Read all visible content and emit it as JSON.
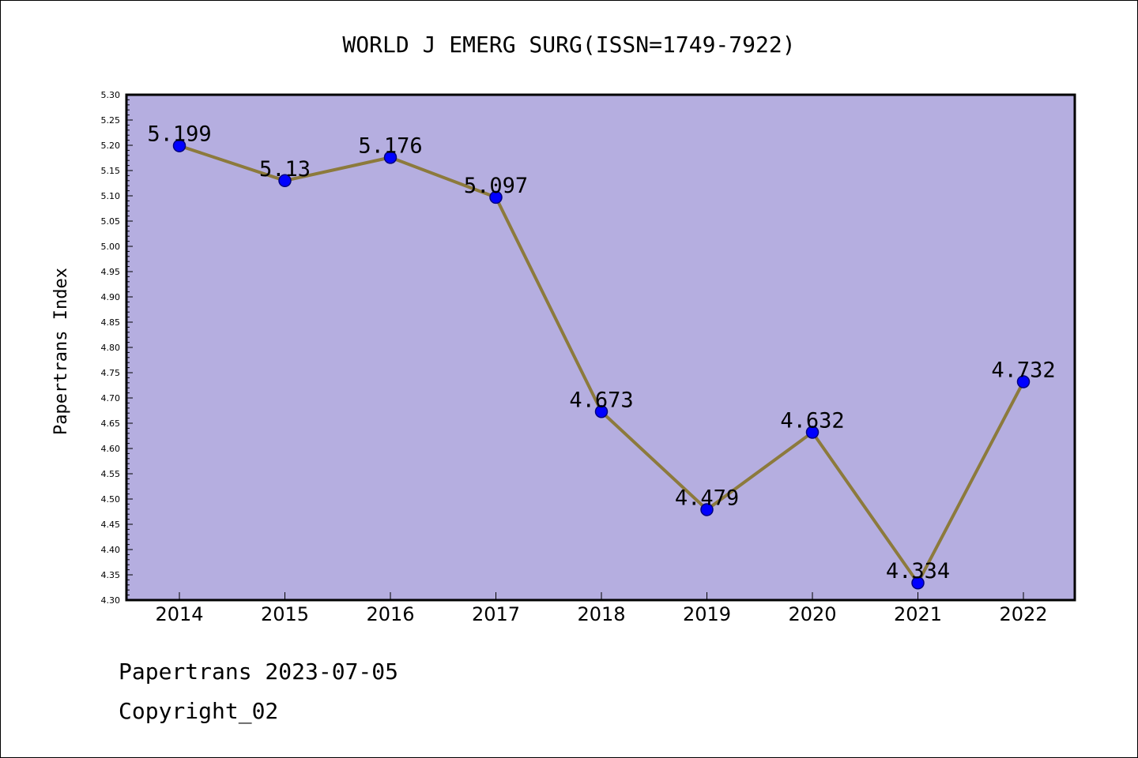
{
  "chart_data": {
    "type": "line",
    "title": "WORLD J EMERG SURG(ISSN=1749-7922)",
    "xlabel": "",
    "ylabel": "Papertrans Index",
    "categories": [
      "2014",
      "2015",
      "2016",
      "2017",
      "2018",
      "2019",
      "2020",
      "2021",
      "2022"
    ],
    "values": [
      5.199,
      5.13,
      5.176,
      5.097,
      4.673,
      4.479,
      4.632,
      4.334,
      4.732
    ],
    "data_labels": [
      "5.199",
      "5.13",
      "5.176",
      "5.097",
      "4.673",
      "4.479",
      "4.632",
      "4.334",
      "4.732"
    ],
    "ylim": [
      4.3,
      5.3
    ],
    "ytick_labels": [
      "4.30",
      "4.35",
      "4.40",
      "4.45",
      "4.50",
      "4.55",
      "4.60",
      "4.65",
      "4.70",
      "4.75",
      "4.80",
      "4.85",
      "4.90",
      "4.95",
      "5.00",
      "5.05",
      "5.10",
      "5.15",
      "5.20",
      "5.25",
      "5.30"
    ],
    "grid": false,
    "legend": "none",
    "colors": {
      "plot_background": "#b5aee0",
      "line": "#8c7a3c",
      "marker_fill": "#0000ff",
      "marker_edge": "#000080"
    }
  },
  "footer": {
    "date_line": "Papertrans 2023-07-05",
    "copyright_line": "Copyright_02"
  }
}
